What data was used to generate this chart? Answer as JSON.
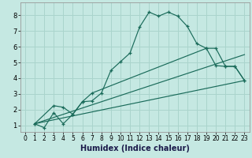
{
  "xlabel": "Humidex (Indice chaleur)",
  "bg_color": "#c5e8e2",
  "grid_color": "#aad4cc",
  "line_color": "#1a6b5a",
  "xlim": [
    -0.5,
    23.5
  ],
  "ylim": [
    0.6,
    8.8
  ],
  "xticks": [
    0,
    1,
    2,
    3,
    4,
    5,
    6,
    7,
    8,
    9,
    10,
    11,
    12,
    13,
    14,
    15,
    16,
    17,
    18,
    19,
    20,
    21,
    22,
    23
  ],
  "yticks": [
    1,
    2,
    3,
    4,
    5,
    6,
    7,
    8
  ],
  "line1_x": [
    1,
    2,
    3,
    4,
    5,
    6,
    7,
    8,
    9,
    10,
    11,
    12,
    13,
    14,
    15,
    16,
    17,
    18,
    19,
    20,
    21,
    22,
    23
  ],
  "line1_y": [
    1.1,
    0.85,
    1.8,
    1.1,
    1.7,
    2.5,
    2.55,
    3.05,
    4.5,
    5.05,
    5.6,
    7.25,
    8.2,
    7.95,
    8.2,
    7.95,
    7.3,
    6.2,
    5.9,
    4.8,
    4.75,
    4.75,
    3.85
  ],
  "line2_x": [
    1,
    3,
    4,
    5,
    6,
    7,
    19,
    20,
    21,
    22,
    23
  ],
  "line2_y": [
    1.1,
    2.25,
    2.15,
    1.7,
    2.5,
    3.05,
    5.9,
    5.9,
    4.75,
    4.75,
    3.85
  ],
  "line3_x": [
    1,
    23
  ],
  "line3_y": [
    1.1,
    3.85
  ],
  "line4_x": [
    1,
    23
  ],
  "line4_y": [
    1.1,
    5.5
  ],
  "xlabel_fontsize": 7,
  "tick_fontsize": 5.5
}
